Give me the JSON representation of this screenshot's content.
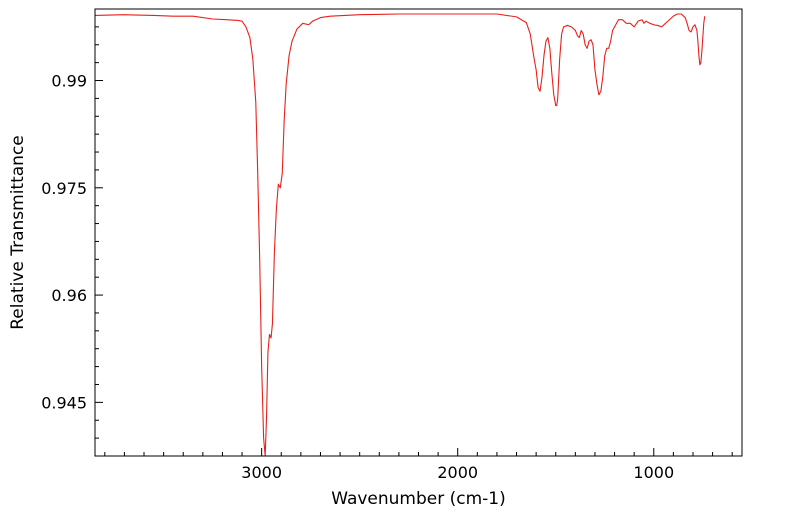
{
  "chart_data": {
    "type": "line",
    "title": "",
    "xlabel": "Wavenumber (cm-1)",
    "ylabel": "Relative Transmittance",
    "xlim": [
      3850,
      550
    ],
    "ylim": [
      0.9375,
      1.0
    ],
    "x_inverted": true,
    "grid": false,
    "legend": "none",
    "xticks": [
      {
        "value": 3000,
        "label": "3000"
      },
      {
        "value": 2000,
        "label": "2000"
      },
      {
        "value": 1000,
        "label": "1000"
      }
    ],
    "yticks": [
      {
        "value": 0.99,
        "label": "0.99"
      },
      {
        "value": 0.975,
        "label": "0.975"
      },
      {
        "value": 0.96,
        "label": "0.96"
      },
      {
        "value": 0.945,
        "label": "0.945"
      }
    ],
    "series": [
      {
        "color": "#e8201c",
        "points": [
          [
            3850,
            0.9991
          ],
          [
            3700,
            0.9992
          ],
          [
            3550,
            0.9991
          ],
          [
            3450,
            0.999
          ],
          [
            3350,
            0.999
          ],
          [
            3250,
            0.9986
          ],
          [
            3180,
            0.9985
          ],
          [
            3120,
            0.9984
          ],
          [
            3100,
            0.9983
          ],
          [
            3080,
            0.9975
          ],
          [
            3060,
            0.996
          ],
          [
            3045,
            0.993
          ],
          [
            3030,
            0.987
          ],
          [
            3020,
            0.977
          ],
          [
            3010,
            0.965
          ],
          [
            3000,
            0.95
          ],
          [
            2990,
            0.94
          ],
          [
            2982,
            0.9375
          ],
          [
            2975,
            0.943
          ],
          [
            2968,
            0.952
          ],
          [
            2960,
            0.9545
          ],
          [
            2952,
            0.954
          ],
          [
            2945,
            0.956
          ],
          [
            2935,
            0.966
          ],
          [
            2925,
            0.972
          ],
          [
            2915,
            0.9755
          ],
          [
            2905,
            0.975
          ],
          [
            2895,
            0.977
          ],
          [
            2885,
            0.9845
          ],
          [
            2875,
            0.9895
          ],
          [
            2860,
            0.9935
          ],
          [
            2845,
            0.9955
          ],
          [
            2820,
            0.9972
          ],
          [
            2790,
            0.998
          ],
          [
            2760,
            0.9978
          ],
          [
            2740,
            0.9983
          ],
          [
            2700,
            0.9988
          ],
          [
            2650,
            0.999
          ],
          [
            2500,
            0.9992
          ],
          [
            2300,
            0.9993
          ],
          [
            2100,
            0.9993
          ],
          [
            1900,
            0.9993
          ],
          [
            1800,
            0.9993
          ],
          [
            1700,
            0.9989
          ],
          [
            1650,
            0.9981
          ],
          [
            1630,
            0.9965
          ],
          [
            1610,
            0.993
          ],
          [
            1600,
            0.9915
          ],
          [
            1590,
            0.989
          ],
          [
            1580,
            0.9885
          ],
          [
            1570,
            0.9905
          ],
          [
            1560,
            0.9935
          ],
          [
            1550,
            0.9955
          ],
          [
            1540,
            0.996
          ],
          [
            1530,
            0.9945
          ],
          [
            1520,
            0.991
          ],
          [
            1510,
            0.988
          ],
          [
            1500,
            0.9865
          ],
          [
            1495,
            0.9865
          ],
          [
            1490,
            0.9875
          ],
          [
            1480,
            0.993
          ],
          [
            1470,
            0.9965
          ],
          [
            1460,
            0.9975
          ],
          [
            1440,
            0.9977
          ],
          [
            1420,
            0.9975
          ],
          [
            1400,
            0.997
          ],
          [
            1390,
            0.9963
          ],
          [
            1380,
            0.996
          ],
          [
            1370,
            0.997
          ],
          [
            1360,
            0.9965
          ],
          [
            1350,
            0.995
          ],
          [
            1340,
            0.9945
          ],
          [
            1330,
            0.9955
          ],
          [
            1320,
            0.9957
          ],
          [
            1310,
            0.995
          ],
          [
            1300,
            0.9915
          ],
          [
            1290,
            0.9895
          ],
          [
            1280,
            0.988
          ],
          [
            1270,
            0.9885
          ],
          [
            1260,
            0.9905
          ],
          [
            1250,
            0.9935
          ],
          [
            1240,
            0.9945
          ],
          [
            1230,
            0.9945
          ],
          [
            1220,
            0.9955
          ],
          [
            1210,
            0.997
          ],
          [
            1200,
            0.9975
          ],
          [
            1180,
            0.9985
          ],
          [
            1160,
            0.9985
          ],
          [
            1140,
            0.998
          ],
          [
            1120,
            0.998
          ],
          [
            1100,
            0.9975
          ],
          [
            1080,
            0.9983
          ],
          [
            1060,
            0.9985
          ],
          [
            1050,
            0.998
          ],
          [
            1040,
            0.9983
          ],
          [
            1020,
            0.998
          ],
          [
            1000,
            0.9978
          ],
          [
            980,
            0.9977
          ],
          [
            960,
            0.9975
          ],
          [
            940,
            0.998
          ],
          [
            920,
            0.9985
          ],
          [
            900,
            0.999
          ],
          [
            880,
            0.9993
          ],
          [
            860,
            0.9993
          ],
          [
            840,
            0.9988
          ],
          [
            830,
            0.998
          ],
          [
            820,
            0.997
          ],
          [
            810,
            0.9968
          ],
          [
            800,
            0.9975
          ],
          [
            790,
            0.9978
          ],
          [
            780,
            0.997
          ],
          [
            775,
            0.9955
          ],
          [
            770,
            0.9935
          ],
          [
            765,
            0.9922
          ],
          [
            760,
            0.9925
          ],
          [
            755,
            0.994
          ],
          [
            750,
            0.996
          ],
          [
            745,
            0.998
          ],
          [
            740,
            0.999
          ]
        ]
      }
    ]
  }
}
